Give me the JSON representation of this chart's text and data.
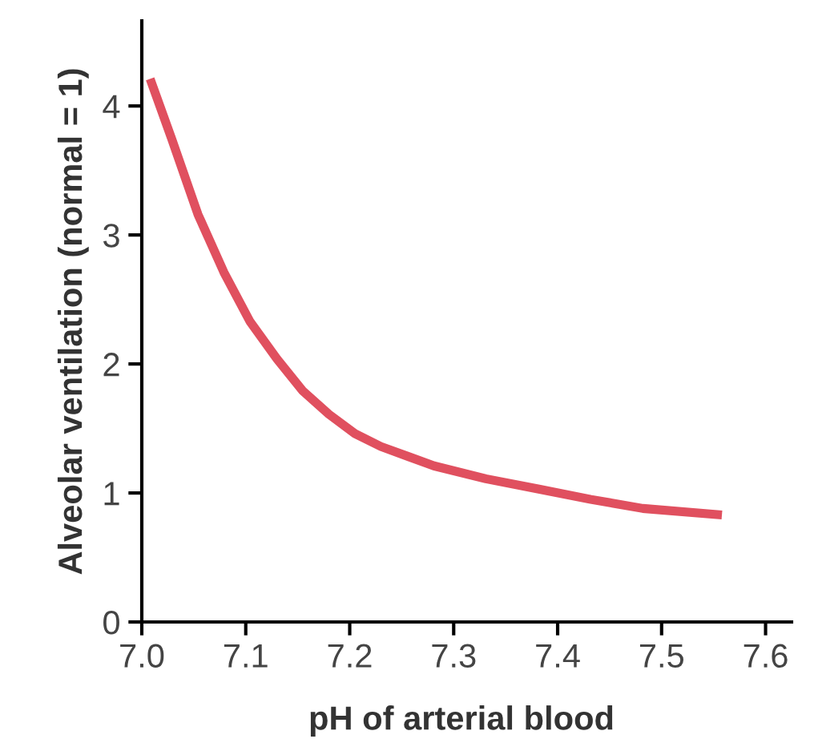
{
  "chart_data": {
    "type": "line",
    "xlabel": "pH of arterial blood",
    "ylabel": "Alveolar ventilation (normal = 1)",
    "series": [
      {
        "color": "#e0505f",
        "x": [
          7.008,
          7.029,
          7.054,
          7.079,
          7.104,
          7.13,
          7.155,
          7.18,
          7.205,
          7.23,
          7.281,
          7.331,
          7.382,
          7.432,
          7.482,
          7.558
        ],
        "values": [
          4.21,
          3.74,
          3.16,
          2.71,
          2.33,
          2.04,
          1.79,
          1.61,
          1.46,
          1.36,
          1.21,
          1.11,
          1.03,
          0.95,
          0.88,
          0.83
        ]
      }
    ],
    "xlim": [
      6.99,
      7.625
    ],
    "ylim": [
      0,
      4.66
    ],
    "xticks": [
      {
        "value": 7.0,
        "label": "7.0"
      },
      7.1,
      7.2,
      7.3,
      7.4,
      7.5,
      7.6
    ],
    "yticks": [
      0,
      1,
      2,
      3,
      4
    ],
    "marker": "none",
    "line_style": "solid"
  }
}
